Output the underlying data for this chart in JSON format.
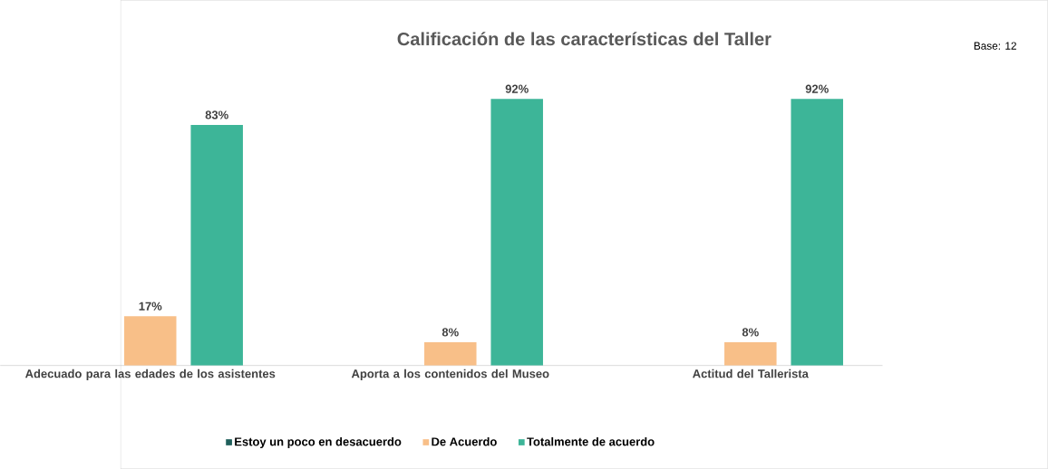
{
  "chart_data": {
    "type": "bar",
    "title": "Calificación de las características del Taller",
    "annotations": [
      "Base: 12"
    ],
    "categories": [
      "Adecuado para las edades de los asistentes",
      "Aporta a los contenidos del Museo",
      "Actitud del Tallerista"
    ],
    "series": [
      {
        "name": "Estoy un poco en desacuerdo",
        "color": "#1f5f5b",
        "values": [
          null,
          null,
          null
        ]
      },
      {
        "name": "De Acuerdo",
        "color": "#f8bf88",
        "values": [
          17,
          8,
          8
        ],
        "value_labels": [
          "17%",
          "8%",
          "8%"
        ]
      },
      {
        "name": "Totalmente de acuerdo",
        "color": "#3db598",
        "values": [
          83,
          92,
          92
        ],
        "value_labels": [
          "83%",
          "92%",
          "92%"
        ]
      }
    ],
    "legend": "bottom"
  }
}
